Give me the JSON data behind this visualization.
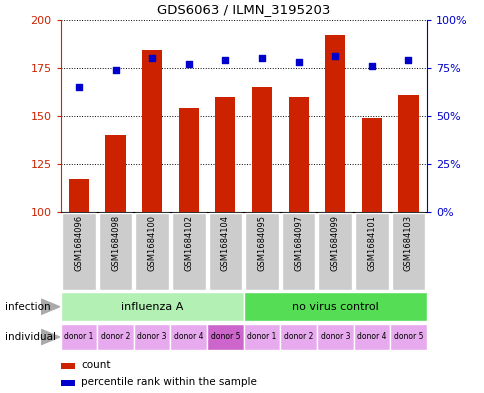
{
  "title": "GDS6063 / ILMN_3195203",
  "samples": [
    "GSM1684096",
    "GSM1684098",
    "GSM1684100",
    "GSM1684102",
    "GSM1684104",
    "GSM1684095",
    "GSM1684097",
    "GSM1684099",
    "GSM1684101",
    "GSM1684103"
  ],
  "counts": [
    117,
    140,
    184,
    154,
    160,
    165,
    160,
    192,
    149,
    161
  ],
  "percentiles": [
    65,
    74,
    80,
    77,
    79,
    80,
    78,
    81,
    76,
    79
  ],
  "ylim_left": [
    100,
    200
  ],
  "ylim_right": [
    0,
    100
  ],
  "yticks_left": [
    100,
    125,
    150,
    175,
    200
  ],
  "yticks_right": [
    0,
    25,
    50,
    75,
    100
  ],
  "infection_groups": [
    {
      "label": "influenza A",
      "start": 0,
      "end": 5,
      "color": "#b3f0b3"
    },
    {
      "label": "no virus control",
      "start": 5,
      "end": 10,
      "color": "#55dd55"
    }
  ],
  "individual_labels": [
    "donor 1",
    "donor 2",
    "donor 3",
    "donor 4",
    "donor 5",
    "donor 1",
    "donor 2",
    "donor 3",
    "donor 4",
    "donor 5"
  ],
  "individual_colors": [
    "#e8aaee",
    "#e8aaee",
    "#e8aaee",
    "#e8aaee",
    "#cc66cc",
    "#e8aaee",
    "#e8aaee",
    "#e8aaee",
    "#e8aaee",
    "#e8aaee"
  ],
  "bar_color": "#cc2200",
  "dot_color": "#0000cc",
  "tick_color_left": "#cc2200",
  "tick_color_right": "#0000cc",
  "sample_box_color": "#cccccc",
  "legend_count_label": "count",
  "legend_pct_label": "percentile rank within the sample",
  "xlabel_row1_label": "infection",
  "xlabel_row2_label": "individual"
}
